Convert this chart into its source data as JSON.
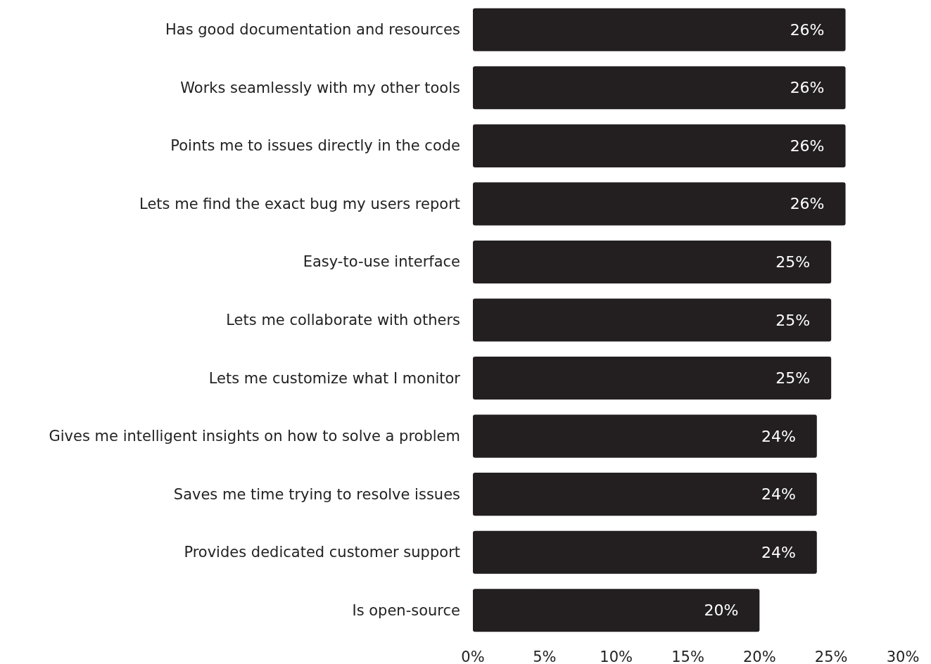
{
  "chart_data": {
    "type": "bar",
    "orientation": "horizontal",
    "categories": [
      "Has good documentation and resources",
      "Works seamlessly with my other tools",
      "Points me to issues directly in the code",
      "Lets me find the exact bug my users report",
      "Easy-to-use interface",
      "Lets me collaborate with others",
      "Lets me customize what I monitor",
      "Gives me intelligent insights on how to solve a problem",
      "Saves me time trying to resolve issues",
      "Provides dedicated customer support",
      "Is open-source"
    ],
    "values": [
      26,
      26,
      26,
      26,
      25,
      25,
      25,
      24,
      24,
      24,
      20
    ],
    "value_labels": [
      "26%",
      "26%",
      "26%",
      "26%",
      "25%",
      "25%",
      "25%",
      "24%",
      "24%",
      "24%",
      "20%"
    ],
    "color": "#231f20",
    "xlim": [
      0,
      30
    ],
    "xticks": [
      {
        "value": 0,
        "label": "0%"
      },
      {
        "value": 5,
        "label": "5%"
      },
      {
        "value": 10,
        "label": "10%"
      },
      {
        "value": 15,
        "label": "15%"
      },
      {
        "value": 20,
        "label": "20%"
      },
      {
        "value": 25,
        "label": "25%"
      },
      {
        "value": 30,
        "label": "30%"
      }
    ],
    "grid": false
  }
}
